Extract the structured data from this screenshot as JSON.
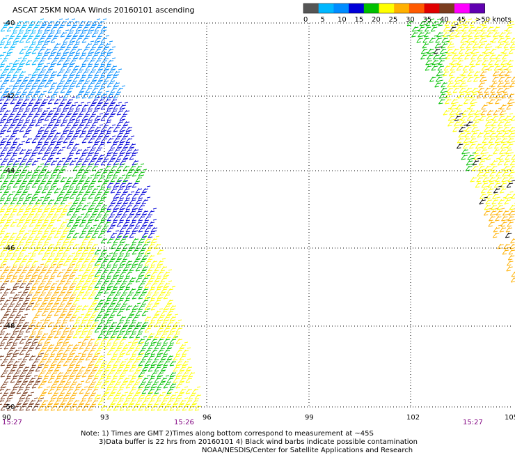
{
  "title": "ASCAT 25KM NOAA Winds 20160101 ascending",
  "legend": {
    "labels": [
      "0",
      "5",
      "10",
      "15",
      "20",
      "25",
      "30",
      "35",
      "40",
      "45",
      ">50 knots"
    ],
    "colors": [
      "#555555",
      "#00b7ff",
      "#008cff",
      "#0000d8",
      "#00c000",
      "#ffff00",
      "#ffb000",
      "#ff5a00",
      "#e00000",
      "#7a3d1f",
      "#ff00ff",
      "#6000b0"
    ]
  },
  "map": {
    "lat_labels": [
      "-40",
      "-42",
      "-44",
      "-46",
      "-48",
      "-50"
    ],
    "lon_labels": [
      "90",
      "93",
      "96",
      "99",
      "102",
      "105"
    ],
    "time_labels": [
      "15:27",
      "15:26",
      "15:27"
    ],
    "time_color": "#800080"
  },
  "notes": {
    "line1": "Note: 1) Times are GMT 2)Times along bottom correspond to measurement at ~45S",
    "line2": "3)Data buffer is 22 hrs from 20160101 4) Black wind barbs indicate possible contamination",
    "line3": "NOAA/NESDIS/Center for Satellite Applications and Research"
  }
}
